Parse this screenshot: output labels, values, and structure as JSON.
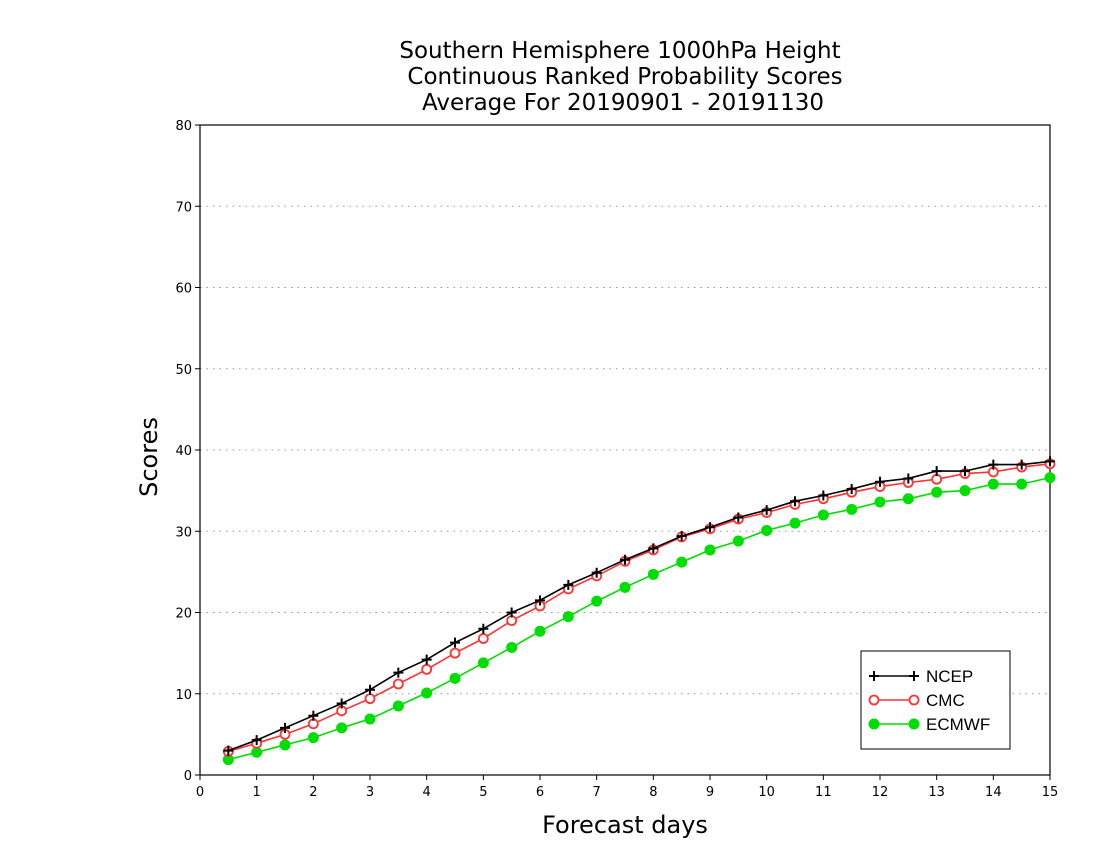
{
  "chart_data": {
    "type": "line",
    "title": [
      "Southern Hemisphere 1000hPa Height",
      "Continuous Ranked Probability Scores",
      "Average For 20190901 - 20191130"
    ],
    "xlabel": "Forecast days",
    "ylabel": "Scores",
    "xlim": [
      0,
      15
    ],
    "ylim": [
      0,
      80
    ],
    "xticks": [
      "0",
      "1",
      "2",
      "3",
      "4",
      "5",
      "6",
      "7",
      "8",
      "9",
      "10",
      "11",
      "12",
      "13",
      "14",
      "15"
    ],
    "yticks": [
      "0",
      "10",
      "20",
      "30",
      "40",
      "50",
      "60",
      "70",
      "80"
    ],
    "grid": "horizontal dotted",
    "legend": "bottom-right",
    "x": [
      0.5,
      1,
      1.5,
      2,
      2.5,
      3,
      3.5,
      4,
      4.5,
      5,
      5.5,
      6,
      6.5,
      7,
      7.5,
      8,
      8.5,
      9,
      9.5,
      10,
      10.5,
      11,
      11.5,
      12,
      12.5,
      13,
      13.5,
      14,
      14.5,
      15
    ],
    "series": [
      {
        "name": "NCEP",
        "color": "#000000",
        "marker": "plus",
        "values": [
          3.0,
          4.3,
          5.8,
          7.3,
          8.8,
          10.5,
          12.6,
          14.2,
          16.3,
          18.0,
          20.0,
          21.5,
          23.4,
          24.9,
          26.5,
          27.9,
          29.4,
          30.5,
          31.7,
          32.6,
          33.7,
          34.4,
          35.2,
          36.1,
          36.5,
          37.4,
          37.4,
          38.2,
          38.2,
          38.6
        ]
      },
      {
        "name": "CMC",
        "color": "#ff3333",
        "marker": "open-circle",
        "values": [
          2.9,
          3.9,
          5.0,
          6.3,
          7.9,
          9.4,
          11.2,
          13.0,
          15.0,
          16.8,
          19.0,
          20.8,
          22.9,
          24.5,
          26.3,
          27.7,
          29.3,
          30.3,
          31.5,
          32.3,
          33.3,
          34.0,
          34.8,
          35.5,
          36.0,
          36.4,
          37.1,
          37.3,
          37.9,
          38.3
        ]
      },
      {
        "name": "ECMWF",
        "color": "#00dd00",
        "marker": "filled-circle",
        "values": [
          1.9,
          2.8,
          3.7,
          4.6,
          5.8,
          6.9,
          8.5,
          10.1,
          11.9,
          13.8,
          15.7,
          17.7,
          19.5,
          21.4,
          23.1,
          24.7,
          26.2,
          27.7,
          28.8,
          30.1,
          31.0,
          32.0,
          32.7,
          33.6,
          34.0,
          34.8,
          35.0,
          35.8,
          35.8,
          36.6
        ]
      }
    ]
  }
}
